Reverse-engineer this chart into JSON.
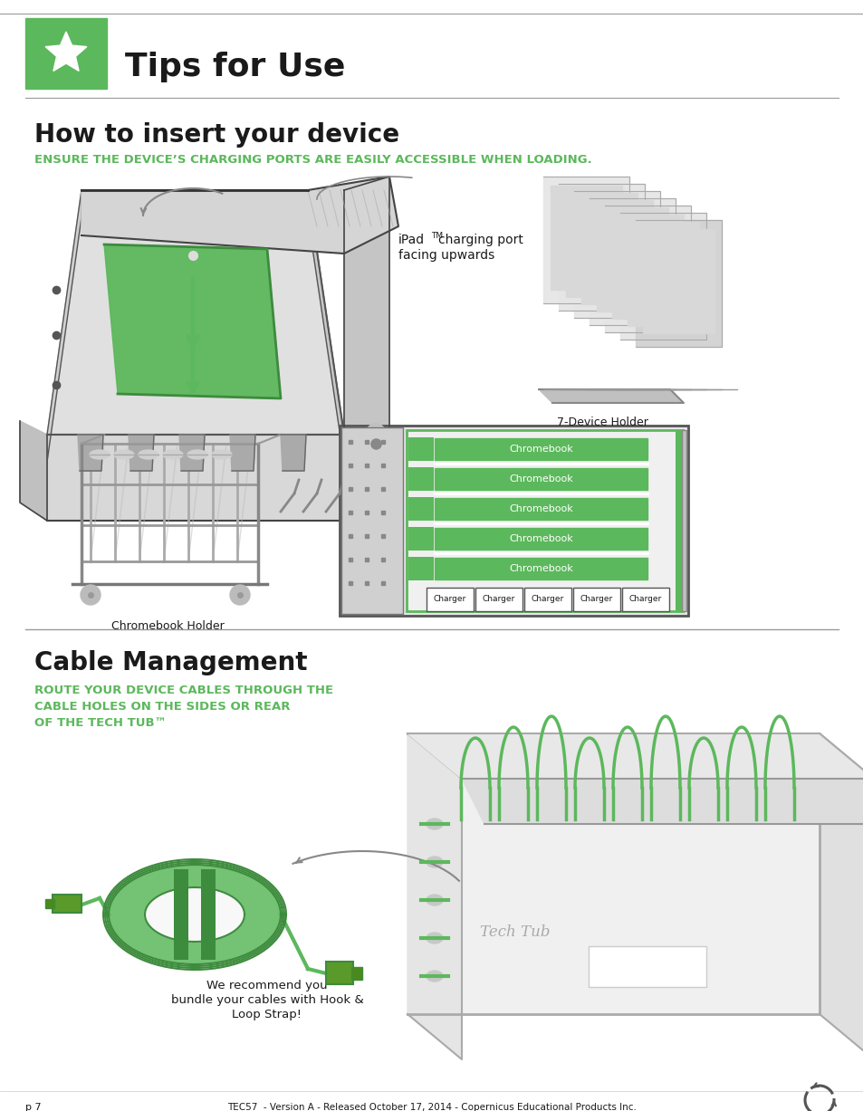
{
  "page_bg": "#ffffff",
  "green_accent": "#5cb85c",
  "green_dark": "#3d8b3d",
  "text_dark": "#1a1a1a",
  "text_green": "#5cb85c",
  "header_title": "Tips for Use",
  "section1_title": "How to insert your device",
  "section1_subtitle": "ENSURE THE DEVICE’S CHARGING PORTS ARE EASILY ACCESSIBLE WHEN LOADING.",
  "section2_title": "Cable Management",
  "section2_subtitle_lines": [
    "ROUTE YOUR DEVICE CABLES THROUGH THE",
    "CABLE HOLES ON THE SIDES OR REAR",
    "OF THE TECH TUB™"
  ],
  "device_holder_label": "7-Device Holder",
  "chromebook_holder_label": "Chromebook Holder",
  "chromebook_labels": [
    "Chromebook",
    "Chromebook",
    "Chromebook",
    "Chromebook",
    "Chromebook"
  ],
  "charger_labels": [
    "Charger",
    "Charger",
    "Charger",
    "Charger",
    "Charger"
  ],
  "cable_text_lines": [
    "We recommend you",
    "bundle your cables with Hook &",
    "Loop Strap!"
  ],
  "ipad_label_line1": "iPad",
  "ipad_label_tm": "TM",
  "ipad_label_line1b": "charging port",
  "ipad_label_line2": "facing upwards",
  "footer_left": "p 7",
  "footer_center": "TEC57  - Version A - Released October 17, 2014 - Copernicus Educational Products Inc.",
  "line_color": "#cccccc",
  "separator_color": "#999999",
  "gray_light": "#e8e8e8",
  "gray_mid": "#cccccc",
  "gray_dark": "#888888"
}
